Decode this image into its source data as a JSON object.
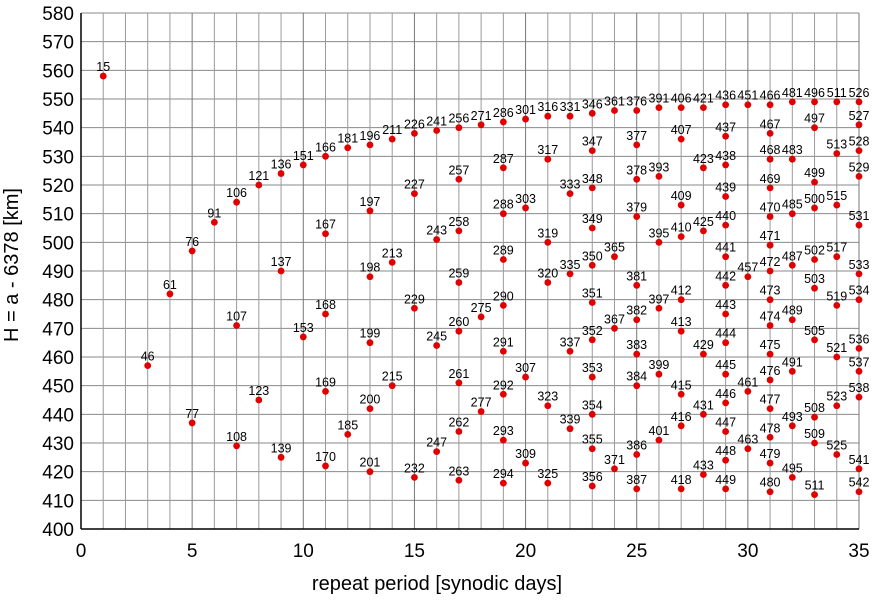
{
  "chart_data": {
    "type": "scatter",
    "xlabel": "repeat period [synodic days]",
    "ylabel": "H = a - 6378 [km]",
    "xlim": [
      0,
      35
    ],
    "ylim": [
      400,
      580
    ],
    "x_ticks": [
      "0",
      "5",
      "10",
      "15",
      "20",
      "25",
      "30",
      "35"
    ],
    "y_ticks": [
      "400",
      "410",
      "420",
      "430",
      "440",
      "450",
      "460",
      "470",
      "480",
      "490",
      "500",
      "510",
      "520",
      "530",
      "540",
      "550",
      "560",
      "570",
      "580"
    ],
    "grid": true,
    "marker_color": "#e00000",
    "points": [
      {
        "x": 1,
        "y": 558,
        "label": "15"
      },
      {
        "x": 3,
        "y": 457,
        "label": "46"
      },
      {
        "x": 4,
        "y": 482,
        "label": "61"
      },
      {
        "x": 5,
        "y": 497,
        "label": "76"
      },
      {
        "x": 5,
        "y": 437,
        "label": "77"
      },
      {
        "x": 6,
        "y": 507,
        "label": "91"
      },
      {
        "x": 7,
        "y": 514,
        "label": "106"
      },
      {
        "x": 7,
        "y": 471,
        "label": "107"
      },
      {
        "x": 7,
        "y": 429,
        "label": "108"
      },
      {
        "x": 8,
        "y": 520,
        "label": "121"
      },
      {
        "x": 8,
        "y": 445,
        "label": "123"
      },
      {
        "x": 9,
        "y": 524,
        "label": "136"
      },
      {
        "x": 9,
        "y": 490,
        "label": "137"
      },
      {
        "x": 9,
        "y": 425,
        "label": "139"
      },
      {
        "x": 10,
        "y": 527,
        "label": "151"
      },
      {
        "x": 10,
        "y": 467,
        "label": "153"
      },
      {
        "x": 11,
        "y": 530,
        "label": "166"
      },
      {
        "x": 11,
        "y": 503,
        "label": "167"
      },
      {
        "x": 11,
        "y": 475,
        "label": "168"
      },
      {
        "x": 11,
        "y": 448,
        "label": "169"
      },
      {
        "x": 11,
        "y": 422,
        "label": "170"
      },
      {
        "x": 12,
        "y": 533,
        "label": "181"
      },
      {
        "x": 12,
        "y": 433,
        "label": "185"
      },
      {
        "x": 13,
        "y": 534,
        "label": "196"
      },
      {
        "x": 13,
        "y": 511,
        "label": "197"
      },
      {
        "x": 13,
        "y": 488,
        "label": "198"
      },
      {
        "x": 13,
        "y": 465,
        "label": "199"
      },
      {
        "x": 13,
        "y": 442,
        "label": "200"
      },
      {
        "x": 13,
        "y": 420,
        "label": "201"
      },
      {
        "x": 14,
        "y": 536,
        "label": "211"
      },
      {
        "x": 14,
        "y": 493,
        "label": "213"
      },
      {
        "x": 14,
        "y": 450,
        "label": "215"
      },
      {
        "x": 15,
        "y": 538,
        "label": "226"
      },
      {
        "x": 15,
        "y": 517,
        "label": "227"
      },
      {
        "x": 15,
        "y": 477,
        "label": "229"
      },
      {
        "x": 15,
        "y": 418,
        "label": "232"
      },
      {
        "x": 16,
        "y": 539,
        "label": "241"
      },
      {
        "x": 16,
        "y": 501,
        "label": "243"
      },
      {
        "x": 16,
        "y": 464,
        "label": "245"
      },
      {
        "x": 16,
        "y": 427,
        "label": "247"
      },
      {
        "x": 17,
        "y": 540,
        "label": "256"
      },
      {
        "x": 17,
        "y": 522,
        "label": "257"
      },
      {
        "x": 17,
        "y": 504,
        "label": "258"
      },
      {
        "x": 17,
        "y": 486,
        "label": "259"
      },
      {
        "x": 17,
        "y": 469,
        "label": "260"
      },
      {
        "x": 17,
        "y": 451,
        "label": "261"
      },
      {
        "x": 17,
        "y": 434,
        "label": "262"
      },
      {
        "x": 17,
        "y": 417,
        "label": "263"
      },
      {
        "x": 18,
        "y": 541,
        "label": "271"
      },
      {
        "x": 18,
        "y": 474,
        "label": "275"
      },
      {
        "x": 18,
        "y": 441,
        "label": "277"
      },
      {
        "x": 19,
        "y": 542,
        "label": "286"
      },
      {
        "x": 19,
        "y": 526,
        "label": "287"
      },
      {
        "x": 19,
        "y": 510,
        "label": "288"
      },
      {
        "x": 19,
        "y": 494,
        "label": "289"
      },
      {
        "x": 19,
        "y": 478,
        "label": "290"
      },
      {
        "x": 19,
        "y": 462,
        "label": "291"
      },
      {
        "x": 19,
        "y": 447,
        "label": "292"
      },
      {
        "x": 19,
        "y": 431,
        "label": "293"
      },
      {
        "x": 19,
        "y": 416,
        "label": "294"
      },
      {
        "x": 20,
        "y": 543,
        "label": "301"
      },
      {
        "x": 20,
        "y": 512,
        "label": "303"
      },
      {
        "x": 20,
        "y": 453,
        "label": "307"
      },
      {
        "x": 20,
        "y": 423,
        "label": "309"
      },
      {
        "x": 21,
        "y": 544,
        "label": "316"
      },
      {
        "x": 21,
        "y": 529,
        "label": "317"
      },
      {
        "x": 21,
        "y": 500,
        "label": "319"
      },
      {
        "x": 21,
        "y": 486,
        "label": "320"
      },
      {
        "x": 21,
        "y": 443,
        "label": "323"
      },
      {
        "x": 21,
        "y": 416,
        "label": "325"
      },
      {
        "x": 22,
        "y": 544,
        "label": "331"
      },
      {
        "x": 22,
        "y": 517,
        "label": "333"
      },
      {
        "x": 22,
        "y": 489,
        "label": "335"
      },
      {
        "x": 22,
        "y": 462,
        "label": "337"
      },
      {
        "x": 22,
        "y": 435,
        "label": "339"
      },
      {
        "x": 23,
        "y": 545,
        "label": "346"
      },
      {
        "x": 23,
        "y": 532,
        "label": "347"
      },
      {
        "x": 23,
        "y": 519,
        "label": "348"
      },
      {
        "x": 23,
        "y": 505,
        "label": "349"
      },
      {
        "x": 23,
        "y": 492,
        "label": "350"
      },
      {
        "x": 23,
        "y": 479,
        "label": "351"
      },
      {
        "x": 23,
        "y": 466,
        "label": "352"
      },
      {
        "x": 23,
        "y": 453,
        "label": "353"
      },
      {
        "x": 23,
        "y": 440,
        "label": "354"
      },
      {
        "x": 23,
        "y": 428,
        "label": "355"
      },
      {
        "x": 23,
        "y": 415,
        "label": "356"
      },
      {
        "x": 24,
        "y": 546,
        "label": "361"
      },
      {
        "x": 24,
        "y": 495,
        "label": "365"
      },
      {
        "x": 24,
        "y": 470,
        "label": "367"
      },
      {
        "x": 24,
        "y": 421,
        "label": "371"
      },
      {
        "x": 25,
        "y": 546,
        "label": "376"
      },
      {
        "x": 25,
        "y": 534,
        "label": "377"
      },
      {
        "x": 25,
        "y": 522,
        "label": "378"
      },
      {
        "x": 25,
        "y": 509,
        "label": "379"
      },
      {
        "x": 25,
        "y": 485,
        "label": "381"
      },
      {
        "x": 25,
        "y": 473,
        "label": "382"
      },
      {
        "x": 25,
        "y": 461,
        "label": "383"
      },
      {
        "x": 25,
        "y": 450,
        "label": "384"
      },
      {
        "x": 25,
        "y": 426,
        "label": "386"
      },
      {
        "x": 25,
        "y": 414,
        "label": "387"
      },
      {
        "x": 26,
        "y": 547,
        "label": "391"
      },
      {
        "x": 26,
        "y": 523,
        "label": "393"
      },
      {
        "x": 26,
        "y": 500,
        "label": "395"
      },
      {
        "x": 26,
        "y": 477,
        "label": "397"
      },
      {
        "x": 26,
        "y": 454,
        "label": "399"
      },
      {
        "x": 26,
        "y": 431,
        "label": "401"
      },
      {
        "x": 27,
        "y": 547,
        "label": "406"
      },
      {
        "x": 27,
        "y": 536,
        "label": "407"
      },
      {
        "x": 27,
        "y": 513,
        "label": "409"
      },
      {
        "x": 27,
        "y": 502,
        "label": "410"
      },
      {
        "x": 27,
        "y": 480,
        "label": "412"
      },
      {
        "x": 27,
        "y": 469,
        "label": "413"
      },
      {
        "x": 27,
        "y": 447,
        "label": "415"
      },
      {
        "x": 27,
        "y": 436,
        "label": "416"
      },
      {
        "x": 27,
        "y": 414,
        "label": "418"
      },
      {
        "x": 28,
        "y": 547,
        "label": "421"
      },
      {
        "x": 28,
        "y": 526,
        "label": "423"
      },
      {
        "x": 28,
        "y": 504,
        "label": "425"
      },
      {
        "x": 28,
        "y": 461,
        "label": "429"
      },
      {
        "x": 28,
        "y": 440,
        "label": "431"
      },
      {
        "x": 28,
        "y": 419,
        "label": "433"
      },
      {
        "x": 29,
        "y": 548,
        "label": "436"
      },
      {
        "x": 29,
        "y": 537,
        "label": "437"
      },
      {
        "x": 29,
        "y": 527,
        "label": "438"
      },
      {
        "x": 29,
        "y": 516,
        "label": "439"
      },
      {
        "x": 29,
        "y": 506,
        "label": "440"
      },
      {
        "x": 29,
        "y": 495,
        "label": "441"
      },
      {
        "x": 29,
        "y": 485,
        "label": "442"
      },
      {
        "x": 29,
        "y": 475,
        "label": "443"
      },
      {
        "x": 29,
        "y": 465,
        "label": "444"
      },
      {
        "x": 29,
        "y": 454,
        "label": "445"
      },
      {
        "x": 29,
        "y": 444,
        "label": "446"
      },
      {
        "x": 29,
        "y": 434,
        "label": "447"
      },
      {
        "x": 29,
        "y": 424,
        "label": "448"
      },
      {
        "x": 29,
        "y": 414,
        "label": "449"
      },
      {
        "x": 30,
        "y": 548,
        "label": "451"
      },
      {
        "x": 30,
        "y": 488,
        "label": "457"
      },
      {
        "x": 30,
        "y": 448,
        "label": "461"
      },
      {
        "x": 30,
        "y": 428,
        "label": "463"
      },
      {
        "x": 31,
        "y": 548,
        "label": "466"
      },
      {
        "x": 31,
        "y": 538,
        "label": "467"
      },
      {
        "x": 31,
        "y": 529,
        "label": "468"
      },
      {
        "x": 31,
        "y": 519,
        "label": "469"
      },
      {
        "x": 31,
        "y": 509,
        "label": "470"
      },
      {
        "x": 31,
        "y": 499,
        "label": "471"
      },
      {
        "x": 31,
        "y": 490,
        "label": "472"
      },
      {
        "x": 31,
        "y": 480,
        "label": "473"
      },
      {
        "x": 31,
        "y": 471,
        "label": "474"
      },
      {
        "x": 31,
        "y": 461,
        "label": "475"
      },
      {
        "x": 31,
        "y": 452,
        "label": "476"
      },
      {
        "x": 31,
        "y": 442,
        "label": "477"
      },
      {
        "x": 31,
        "y": 432,
        "label": "478"
      },
      {
        "x": 31,
        "y": 423,
        "label": "479"
      },
      {
        "x": 31,
        "y": 413,
        "label": "480"
      },
      {
        "x": 32,
        "y": 549,
        "label": "481"
      },
      {
        "x": 32,
        "y": 529,
        "label": "483"
      },
      {
        "x": 32,
        "y": 510,
        "label": "485"
      },
      {
        "x": 32,
        "y": 492,
        "label": "487"
      },
      {
        "x": 32,
        "y": 473,
        "label": "489"
      },
      {
        "x": 32,
        "y": 455,
        "label": "491"
      },
      {
        "x": 32,
        "y": 436,
        "label": "493"
      },
      {
        "x": 32,
        "y": 418,
        "label": "495"
      },
      {
        "x": 33,
        "y": 549,
        "label": "496"
      },
      {
        "x": 33,
        "y": 540,
        "label": "497"
      },
      {
        "x": 33,
        "y": 521,
        "label": "499"
      },
      {
        "x": 33,
        "y": 512,
        "label": "500"
      },
      {
        "x": 33,
        "y": 494,
        "label": "502"
      },
      {
        "x": 33,
        "y": 484,
        "label": "503"
      },
      {
        "x": 33,
        "y": 466,
        "label": "505"
      },
      {
        "x": 33,
        "y": 439,
        "label": "508"
      },
      {
        "x": 33,
        "y": 430,
        "label": "509"
      },
      {
        "x": 33,
        "y": 412,
        "label": "511"
      },
      {
        "x": 34,
        "y": 549,
        "label": "511"
      },
      {
        "x": 34,
        "y": 531,
        "label": "513"
      },
      {
        "x": 34,
        "y": 513,
        "label": "515"
      },
      {
        "x": 34,
        "y": 495,
        "label": "517"
      },
      {
        "x": 34,
        "y": 478,
        "label": "519"
      },
      {
        "x": 34,
        "y": 460,
        "label": "521"
      },
      {
        "x": 34,
        "y": 443,
        "label": "523"
      },
      {
        "x": 34,
        "y": 426,
        "label": "525"
      },
      {
        "x": 35,
        "y": 549,
        "label": "526"
      },
      {
        "x": 35,
        "y": 541,
        "label": "527"
      },
      {
        "x": 35,
        "y": 532,
        "label": "528"
      },
      {
        "x": 35,
        "y": 523,
        "label": "529"
      },
      {
        "x": 35,
        "y": 506,
        "label": "531"
      },
      {
        "x": 35,
        "y": 489,
        "label": "533"
      },
      {
        "x": 35,
        "y": 480,
        "label": "534"
      },
      {
        "x": 35,
        "y": 463,
        "label": "536"
      },
      {
        "x": 35,
        "y": 455,
        "label": "537"
      },
      {
        "x": 35,
        "y": 446,
        "label": "538"
      },
      {
        "x": 35,
        "y": 421,
        "label": "541"
      },
      {
        "x": 35,
        "y": 413,
        "label": "542"
      }
    ]
  }
}
